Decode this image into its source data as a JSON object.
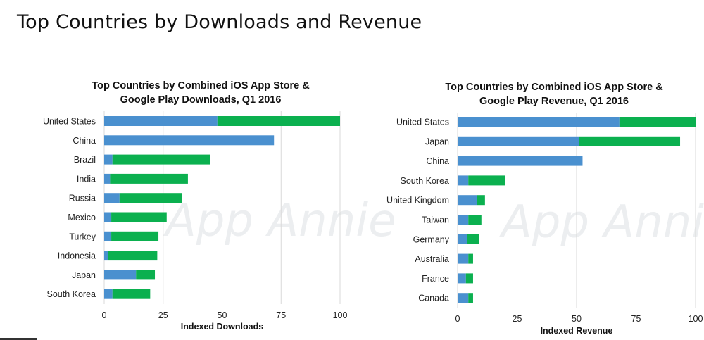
{
  "page_title": "Top Countries by Downloads and Revenue",
  "colors": {
    "ios": "#4a90cf",
    "google_play": "#0bb04f",
    "grid": "#d9d9d9"
  },
  "chart_data": [
    {
      "type": "bar",
      "orientation": "horizontal",
      "stacked": true,
      "title": [
        "Top Countries by Combined iOS App Store &",
        "Google Play Downloads, Q1 2016"
      ],
      "xlabel": "Indexed Downloads",
      "ylabel": "",
      "xlim": [
        0,
        100
      ],
      "xticks": [
        "0",
        "25",
        "50",
        "75",
        "100"
      ],
      "grid": true,
      "watermark": "App Annie",
      "categories": [
        "United States",
        "China",
        "Brazil",
        "India",
        "Russia",
        "Mexico",
        "Turkey",
        "Indonesia",
        "Japan",
        "South Korea"
      ],
      "series": [
        {
          "name": "iOS App Store",
          "values": [
            48,
            72,
            3.5,
            2.5,
            6.5,
            3,
            3,
            1.5,
            13.5,
            3.5
          ]
        },
        {
          "name": "Google Play",
          "values": [
            52,
            0,
            41.5,
            33,
            26.5,
            23.5,
            20,
            21,
            8,
            16
          ]
        }
      ]
    },
    {
      "type": "bar",
      "orientation": "horizontal",
      "stacked": true,
      "title": [
        "Top Countries by Combined iOS App Store &",
        "Google Play Revenue, Q1 2016"
      ],
      "xlabel": "Indexed Revenue",
      "ylabel": "",
      "xlim": [
        0,
        100
      ],
      "xticks": [
        "0",
        "25",
        "50",
        "75",
        "100"
      ],
      "grid": true,
      "watermark": "App Annie",
      "categories": [
        "United States",
        "Japan",
        "China",
        "South Korea",
        "United Kingdom",
        "Taiwan",
        "Germany",
        "Australia",
        "France",
        "Canada"
      ],
      "series": [
        {
          "name": "iOS App Store",
          "values": [
            68,
            51,
            52.5,
            4.5,
            8,
            4.5,
            4,
            4.5,
            3.5,
            4.5
          ]
        },
        {
          "name": "Google Play",
          "values": [
            32,
            42.5,
            0,
            15.5,
            3.5,
            5.5,
            5,
            2,
            3,
            2
          ]
        }
      ]
    }
  ]
}
